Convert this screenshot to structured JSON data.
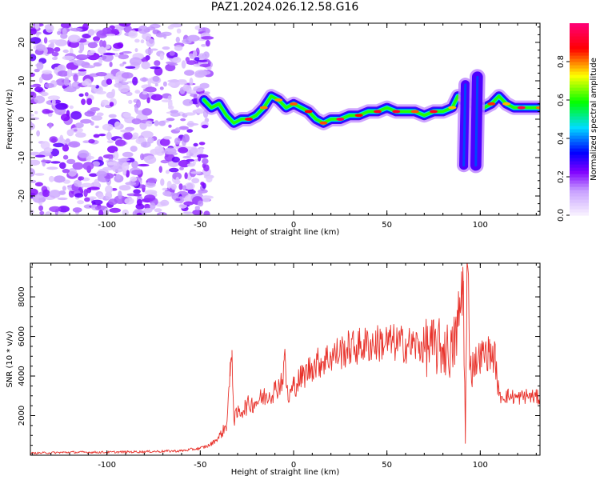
{
  "title": "PAZ1.2024.026.12.58.G16",
  "chart_data": [
    {
      "type": "heatmap",
      "xlabel": "Height of straight line (km)",
      "ylabel": "Frequency (Hz)",
      "xlim": [
        -141,
        132
      ],
      "ylim": [
        -25,
        25
      ],
      "xticks": [
        -100,
        -50,
        0,
        50,
        100
      ],
      "yticks": [
        -20,
        -10,
        0,
        10,
        20
      ],
      "colorbar": {
        "label": "Normalized spectral amplitude",
        "range": [
          0,
          1
        ],
        "ticks": [
          "0.0",
          "0.2",
          "0.4",
          "0.6",
          "0.8"
        ],
        "colors": [
          "#f0e6ff",
          "#8000ff",
          "#0000ff",
          "#00e6ff",
          "#00ff00",
          "#ffff00",
          "#ff0000",
          "#ff0080"
        ]
      },
      "noise_region": {
        "x": [
          -141,
          -45
        ],
        "y": [
          -25,
          25
        ],
        "amplitude": 0.25
      },
      "ridge": [
        {
          "x": -48,
          "y": 5
        },
        {
          "x": -44,
          "y": 3
        },
        {
          "x": -40,
          "y": 4
        },
        {
          "x": -36,
          "y": 1
        },
        {
          "x": -32,
          "y": -1
        },
        {
          "x": -28,
          "y": 0
        },
        {
          "x": -24,
          "y": 0
        },
        {
          "x": -20,
          "y": 1
        },
        {
          "x": -16,
          "y": 3
        },
        {
          "x": -12,
          "y": 6
        },
        {
          "x": -8,
          "y": 5
        },
        {
          "x": -4,
          "y": 3
        },
        {
          "x": 0,
          "y": 4
        },
        {
          "x": 4,
          "y": 3
        },
        {
          "x": 8,
          "y": 2
        },
        {
          "x": 12,
          "y": 0
        },
        {
          "x": 16,
          "y": -1
        },
        {
          "x": 20,
          "y": 0
        },
        {
          "x": 25,
          "y": 0
        },
        {
          "x": 30,
          "y": 1
        },
        {
          "x": 35,
          "y": 1
        },
        {
          "x": 40,
          "y": 2
        },
        {
          "x": 45,
          "y": 2
        },
        {
          "x": 50,
          "y": 3
        },
        {
          "x": 55,
          "y": 2
        },
        {
          "x": 60,
          "y": 2
        },
        {
          "x": 65,
          "y": 2
        },
        {
          "x": 70,
          "y": 1
        },
        {
          "x": 75,
          "y": 2
        },
        {
          "x": 80,
          "y": 2
        },
        {
          "x": 85,
          "y": 3
        },
        {
          "x": 88,
          "y": 6
        },
        {
          "x": 90,
          "y": 5
        },
        {
          "x": 102,
          "y": 3
        },
        {
          "x": 106,
          "y": 4
        },
        {
          "x": 110,
          "y": 6
        },
        {
          "x": 114,
          "y": 4
        },
        {
          "x": 118,
          "y": 3
        },
        {
          "x": 122,
          "y": 3
        },
        {
          "x": 126,
          "y": 3
        },
        {
          "x": 132,
          "y": 3
        }
      ],
      "streaks": [
        {
          "x": [
            90,
            94
          ],
          "y": [
            -12,
            9
          ]
        },
        {
          "x": [
            96,
            101
          ],
          "y": [
            -12,
            11
          ]
        }
      ]
    },
    {
      "type": "line",
      "xlabel": "Height of straight line (km)",
      "ylabel": "SNR (10 * v/v)",
      "xlim": [
        -141,
        132
      ],
      "ylim": [
        0,
        9700
      ],
      "xticks": [
        -100,
        -50,
        0,
        50,
        100
      ],
      "yticks": [
        2000,
        4000,
        6000,
        8000
      ],
      "series": [
        {
          "color": "#e8322b",
          "x": [
            -141,
            -120,
            -100,
            -80,
            -60,
            -50,
            -45,
            -40,
            -36,
            -34,
            -33,
            -32,
            -30,
            -25,
            -20,
            -15,
            -10,
            -6,
            -5,
            -3,
            0,
            5,
            10,
            20,
            30,
            40,
            50,
            60,
            70,
            80,
            85,
            88,
            91,
            92,
            93,
            94,
            95,
            100,
            105,
            108,
            110,
            115,
            120,
            125,
            132
          ],
          "y": [
            100,
            150,
            150,
            180,
            220,
            350,
            500,
            900,
            1500,
            4000,
            5300,
            1800,
            2100,
            2500,
            2700,
            3000,
            3300,
            3800,
            5000,
            2800,
            3500,
            4000,
            4500,
            5000,
            5400,
            5600,
            5700,
            5600,
            5500,
            5400,
            5200,
            6500,
            8800,
            600,
            9700,
            6500,
            4500,
            5000,
            5200,
            4900,
            3000,
            3000,
            2900,
            3000,
            2900
          ]
        }
      ]
    }
  ]
}
